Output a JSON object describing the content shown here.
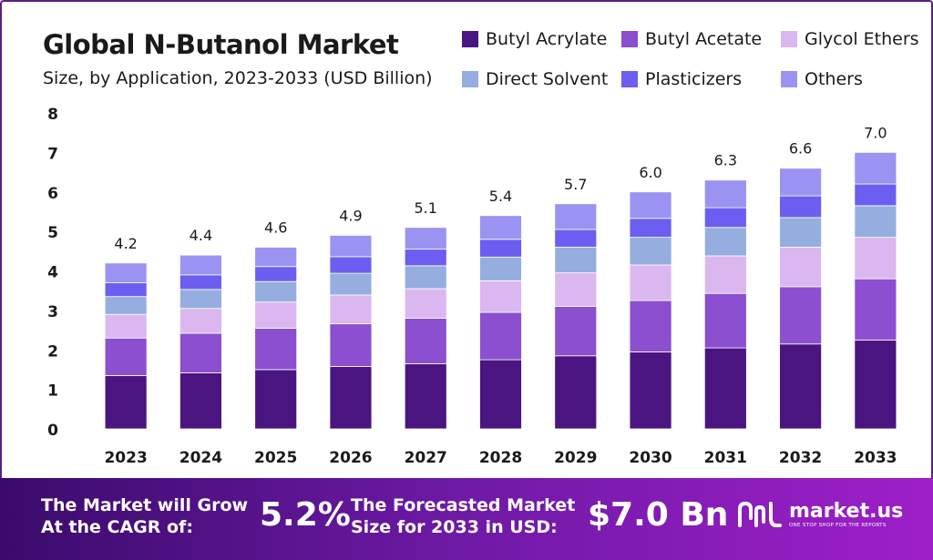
{
  "title": "Global N-Butanol Market",
  "subtitle": "Size, by Application, 2023-2033 (USD Billion)",
  "colors": {
    "butyl_acrylate": "#4a1580",
    "butyl_acetate": "#8b4fd0",
    "glycol_ethers": "#dbb7f0",
    "direct_solvent": "#95aedf",
    "plasticizers": "#6c5ef0",
    "others": "#9b93f2",
    "banner_start": "#3a0b6b",
    "banner_end": "#9e1fc8"
  },
  "chart_data": {
    "type": "bar",
    "stacked": true,
    "categories": [
      "2023",
      "2024",
      "2025",
      "2026",
      "2027",
      "2028",
      "2029",
      "2030",
      "2031",
      "2032",
      "2033"
    ],
    "totals": [
      "4.2",
      "4.4",
      "4.6",
      "4.9",
      "5.1",
      "5.4",
      "5.7",
      "6.0",
      "6.3",
      "6.6",
      "7.0"
    ],
    "series": [
      {
        "name": "Butyl Acrylate",
        "color": "#4a1580",
        "values": [
          1.35,
          1.42,
          1.5,
          1.58,
          1.65,
          1.75,
          1.85,
          1.95,
          2.05,
          2.15,
          2.25
        ]
      },
      {
        "name": "Butyl Acetate",
        "color": "#8b4fd0",
        "values": [
          0.95,
          1.0,
          1.05,
          1.08,
          1.15,
          1.2,
          1.25,
          1.3,
          1.38,
          1.45,
          1.55
        ]
      },
      {
        "name": "Glycol Ethers",
        "color": "#dbb7f0",
        "values": [
          0.6,
          0.63,
          0.66,
          0.73,
          0.75,
          0.8,
          0.85,
          0.9,
          0.95,
          1.0,
          1.05
        ]
      },
      {
        "name": "Direct Solvent",
        "color": "#95aedf",
        "values": [
          0.45,
          0.48,
          0.52,
          0.55,
          0.58,
          0.6,
          0.65,
          0.7,
          0.72,
          0.75,
          0.8
        ]
      },
      {
        "name": "Plasticizers",
        "color": "#6c5ef0",
        "values": [
          0.35,
          0.37,
          0.38,
          0.42,
          0.42,
          0.45,
          0.45,
          0.48,
          0.5,
          0.55,
          0.55
        ]
      },
      {
        "name": "Others",
        "color": "#9b93f2",
        "values": [
          0.5,
          0.5,
          0.49,
          0.54,
          0.55,
          0.6,
          0.65,
          0.67,
          0.7,
          0.7,
          0.8
        ]
      }
    ],
    "ylim": [
      0,
      8
    ],
    "yticks": [
      0,
      1,
      2,
      3,
      4,
      5,
      6,
      7,
      8
    ],
    "xlabel": "",
    "ylabel": "",
    "grid": false,
    "legend": "top-right"
  },
  "legend": {
    "items": [
      {
        "label": "Butyl Acrylate",
        "color": "#4a1580"
      },
      {
        "label": "Butyl Acetate",
        "color": "#8b4fd0"
      },
      {
        "label": "Glycol Ethers",
        "color": "#dbb7f0"
      },
      {
        "label": "Direct Solvent",
        "color": "#95aedf"
      },
      {
        "label": "Plasticizers",
        "color": "#6c5ef0"
      },
      {
        "label": "Others",
        "color": "#9b93f2"
      }
    ]
  },
  "banner": {
    "cagr_label_line1": "The Market will Grow",
    "cagr_label_line2": "At the CAGR of:",
    "cagr_value": "5.2%",
    "forecast_label_line1": "The Forecasted Market",
    "forecast_label_line2": "Size for 2033 in USD:",
    "forecast_value": "$7.0 Bn",
    "brand_name": "market.us",
    "brand_tagline": "ONE STOP SHOP FOR THE REPORTS",
    "brand_icon": "market-us-logo-icon"
  }
}
